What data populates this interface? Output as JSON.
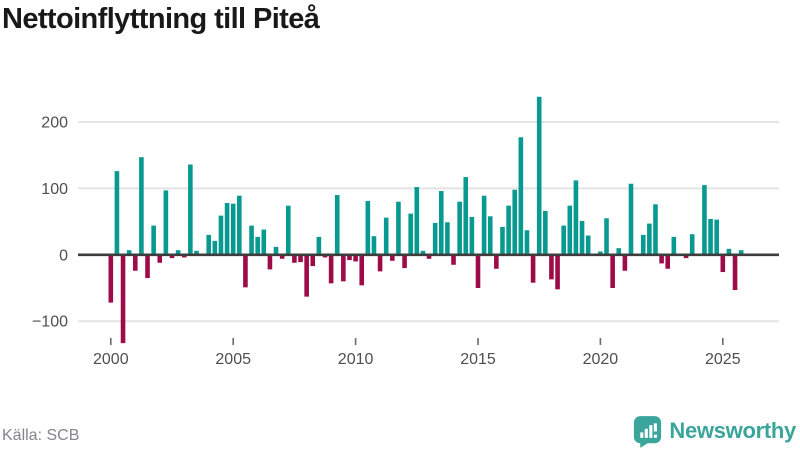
{
  "title": "Nettoinflyttning till Piteå",
  "source": "Källa: SCB",
  "logo": {
    "text": "Newsworthy"
  },
  "colors": {
    "positive": "#089a90",
    "negative": "#9e0b49",
    "logo_teal": "#3ba59b",
    "grid": "#e4e4e4",
    "zero_axis": "#3d3d3d",
    "axis_text": "#4f4f4f",
    "title_text": "#191919",
    "source_text": "#84848c"
  },
  "chart_data": {
    "type": "bar",
    "title": "Nettoinflyttning till Piteå",
    "xlabel": "",
    "ylabel": "",
    "x_unit": "quarter",
    "x_start": "2000 Q1",
    "x_end": "2025 Q4",
    "ylim": [
      -150,
      250
    ],
    "yticks": [
      200,
      100,
      0,
      -100
    ],
    "xticks": [
      2000,
      2005,
      2010,
      2015,
      2020,
      2025
    ],
    "grid": true,
    "legend": "none",
    "series": [
      {
        "name": "Nettoinflyttning",
        "values": [
          -72,
          126,
          -133,
          7,
          -24,
          147,
          -35,
          44,
          -12,
          97,
          -5,
          7,
          -4,
          136,
          6,
          0,
          30,
          21,
          59,
          78,
          77,
          89,
          -49,
          44,
          27,
          38,
          -22,
          12,
          -6,
          74,
          -12,
          -11,
          -63,
          -17,
          27,
          -4,
          -43,
          90,
          -40,
          -8,
          -10,
          -46,
          81,
          28,
          -25,
          56,
          -9,
          80,
          -20,
          62,
          102,
          6,
          -6,
          48,
          96,
          49,
          -15,
          80,
          117,
          57,
          -50,
          89,
          58,
          -21,
          42,
          74,
          98,
          177,
          37,
          -42,
          238,
          66,
          -37,
          -52,
          44,
          74,
          112,
          51,
          29,
          0,
          5,
          55,
          -50,
          10,
          -24,
          107,
          0,
          30,
          47,
          76,
          -13,
          -21,
          27,
          0,
          -5,
          31,
          0,
          105,
          54,
          53,
          -26,
          9,
          -53,
          7
        ]
      }
    ]
  }
}
